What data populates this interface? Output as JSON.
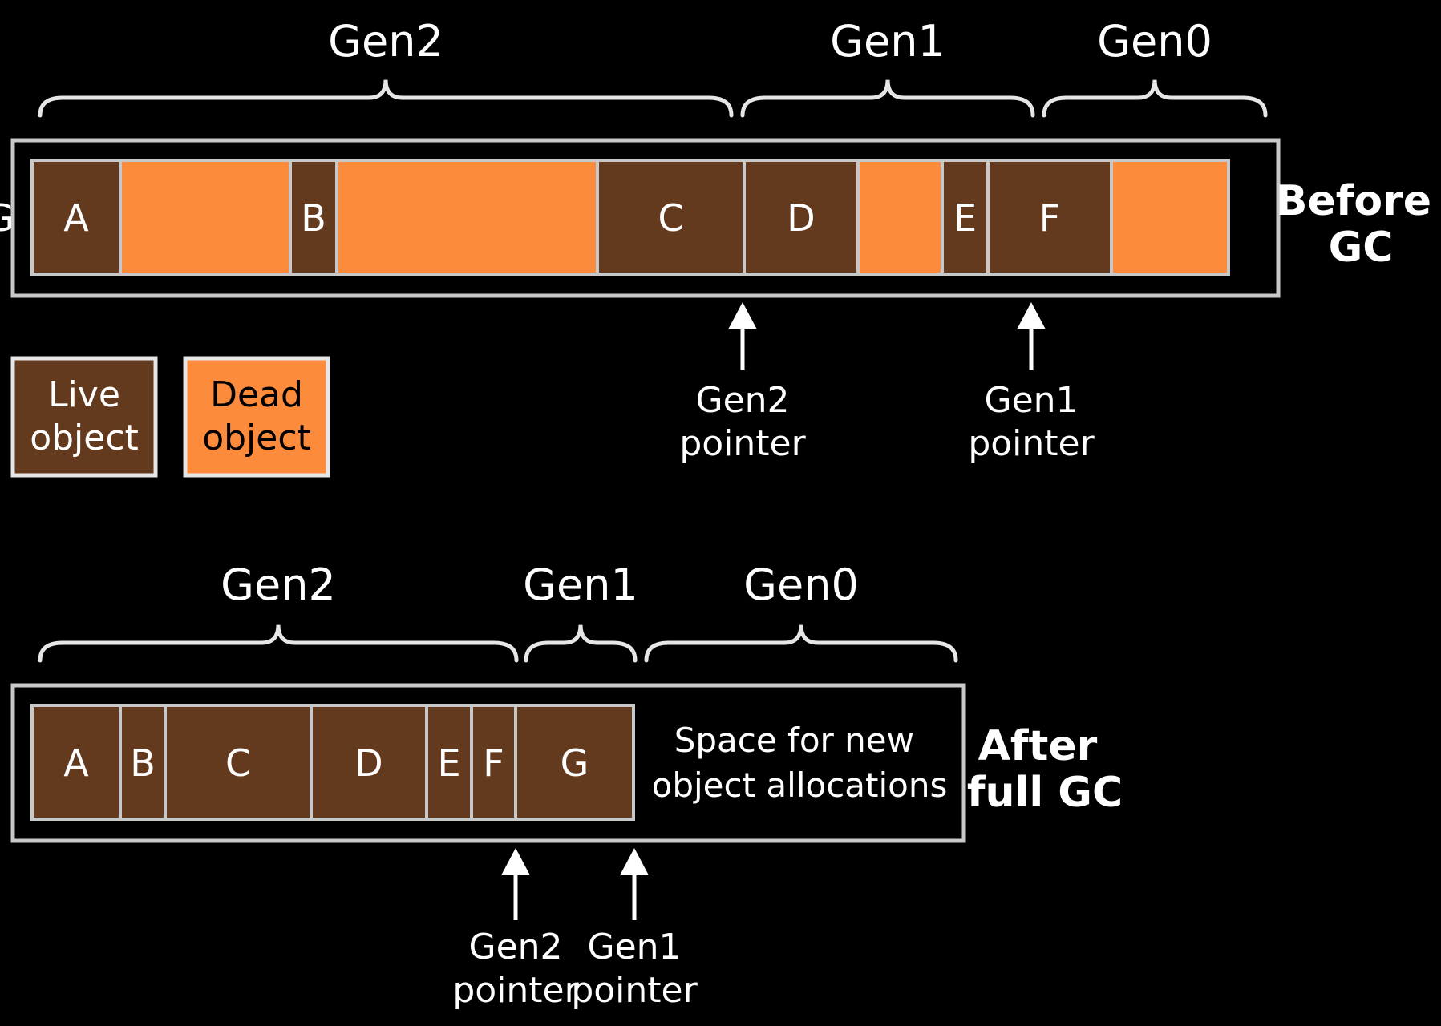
{
  "colors": {
    "live": "#643a1e",
    "dead": "#fd8b3c",
    "outline": "#c8c8c8",
    "text": "#ffffff",
    "background": "#000000"
  },
  "before": {
    "label": [
      "Before",
      "GC"
    ],
    "generations": [
      {
        "name": "Gen2"
      },
      {
        "name": "Gen1"
      },
      {
        "name": "Gen0"
      }
    ],
    "objects": [
      {
        "label": "A",
        "state": "live"
      },
      {
        "label": "",
        "state": "dead"
      },
      {
        "label": "B",
        "state": "live"
      },
      {
        "label": "",
        "state": "dead"
      },
      {
        "label": "C",
        "state": "live"
      },
      {
        "label": "D",
        "state": "live"
      },
      {
        "label": "",
        "state": "dead"
      },
      {
        "label": "E",
        "state": "live"
      },
      {
        "label": "F",
        "state": "live"
      },
      {
        "label": "",
        "state": "dead"
      },
      {
        "label": "G",
        "state": "live"
      }
    ],
    "pointers": [
      {
        "label": [
          "Gen2",
          "pointer"
        ]
      },
      {
        "label": [
          "Gen1",
          "pointer"
        ]
      }
    ]
  },
  "legend": [
    {
      "label": [
        "Live",
        "object"
      ],
      "state": "live"
    },
    {
      "label": [
        "Dead",
        "object"
      ],
      "state": "dead"
    }
  ],
  "after": {
    "label": [
      "After",
      "full GC"
    ],
    "generations": [
      {
        "name": "Gen2"
      },
      {
        "name": "Gen1"
      },
      {
        "name": "Gen0"
      }
    ],
    "objects": [
      {
        "label": "A",
        "state": "live"
      },
      {
        "label": "B",
        "state": "live"
      },
      {
        "label": "C",
        "state": "live"
      },
      {
        "label": "D",
        "state": "live"
      },
      {
        "label": "E",
        "state": "live"
      },
      {
        "label": "F",
        "state": "live"
      },
      {
        "label": "G",
        "state": "live"
      }
    ],
    "free_space_label": [
      "Space for new",
      "object allocations"
    ],
    "pointers": [
      {
        "label": [
          "Gen2",
          "pointer"
        ]
      },
      {
        "label": [
          "Gen1",
          "pointer"
        ]
      }
    ]
  }
}
